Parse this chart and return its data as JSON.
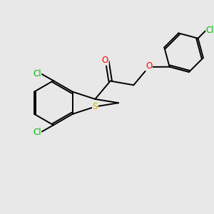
{
  "background_color": "#e8e8e8",
  "bond_color": "#000000",
  "atom_colors": {
    "O": "#ff0000",
    "S": "#ccaa00",
    "Cl": "#00bb00",
    "C": "#000000"
  },
  "line_width": 1.4,
  "font_size": 8.5,
  "figsize": [
    3.0,
    3.0
  ],
  "dpi": 100
}
